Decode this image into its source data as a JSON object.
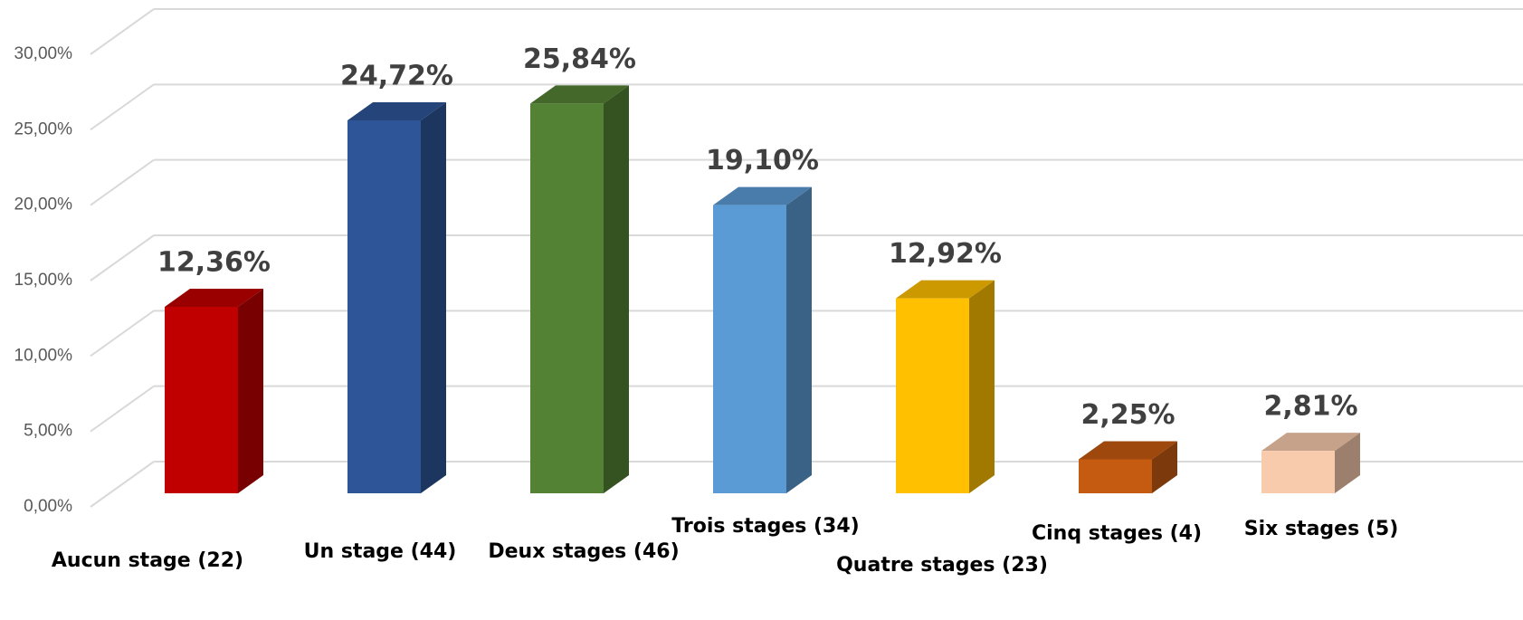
{
  "chart_data": {
    "type": "bar3d",
    "categories": [
      "Aucun stage (22)",
      "Un stage (44)",
      "Deux stages (46)",
      "Trois stages (34)",
      "Quatre stages (23)",
      "Cinq stages (4)",
      "Six stages (5)"
    ],
    "values": [
      12.36,
      24.72,
      25.84,
      19.1,
      12.92,
      2.25,
      2.81
    ],
    "value_labels": [
      "12,36%",
      "24,72%",
      "25,84%",
      "19,10%",
      "12,92%",
      "2,25%",
      "2,81%"
    ],
    "colors": [
      "#c00000",
      "#2e5597",
      "#548235",
      "#5b9bd5",
      "#ffc000",
      "#c55a11",
      "#f8cbad"
    ],
    "ylim": [
      0,
      30
    ],
    "yticks": [
      {
        "value": 0,
        "label": "0,00%"
      },
      {
        "value": 5,
        "label": "5,00%"
      },
      {
        "value": 10,
        "label": "10,00%"
      },
      {
        "value": 15,
        "label": "15,00%"
      },
      {
        "value": 20,
        "label": "20,00%"
      },
      {
        "value": 25,
        "label": "25,00%"
      },
      {
        "value": 30,
        "label": "30,00%"
      }
    ],
    "grid": true
  }
}
